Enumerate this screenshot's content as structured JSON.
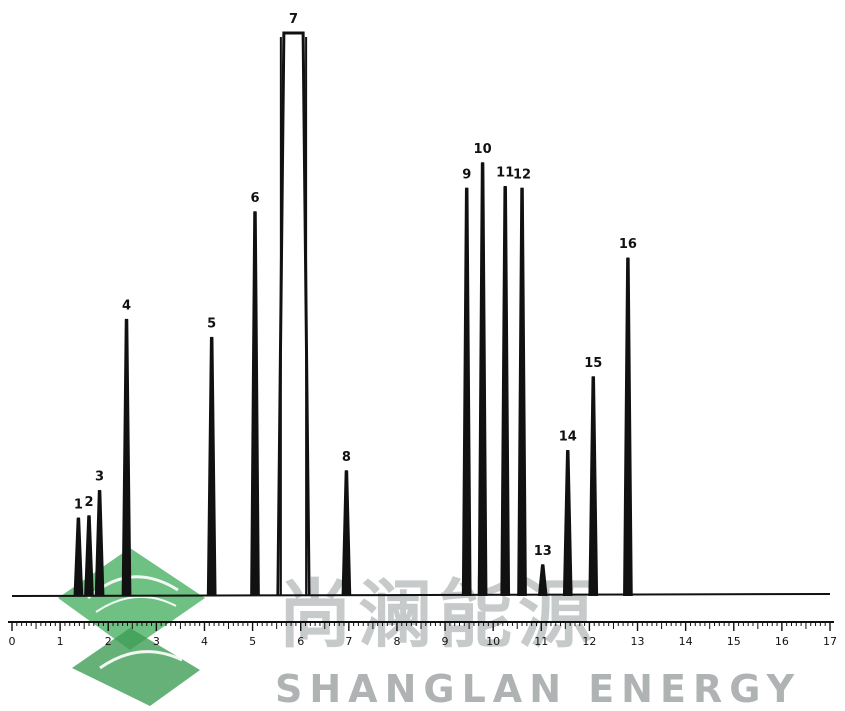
{
  "chart_data": {
    "type": "line",
    "title": "",
    "xlabel": "",
    "ylabel": "",
    "xlim": [
      0,
      17
    ],
    "ylim": [
      0,
      100
    ],
    "x_ticks": [
      "0",
      "1",
      "2",
      "3",
      "4",
      "5",
      "6",
      "7",
      "8",
      "9",
      "10",
      "11",
      "12",
      "13",
      "14",
      "15",
      "16",
      "17"
    ],
    "grid": false,
    "peaks": [
      {
        "label": "1",
        "x": 1.38,
        "height": 13.8,
        "width": 0.05
      },
      {
        "label": "2",
        "x": 1.6,
        "height": 14.2,
        "width": 0.05
      },
      {
        "label": "3",
        "x": 1.82,
        "height": 18.7,
        "width": 0.04
      },
      {
        "label": "4",
        "x": 2.38,
        "height": 49.1,
        "width": 0.07
      },
      {
        "label": "5",
        "x": 4.15,
        "height": 45.9,
        "width": 0.07
      },
      {
        "label": "6",
        "x": 5.05,
        "height": 68.2,
        "width": 0.08
      },
      {
        "label": "7",
        "x": 5.85,
        "height": 100,
        "width": 0.4,
        "saturated": true
      },
      {
        "label": "8",
        "x": 6.95,
        "height": 22.2,
        "width": 0.07
      },
      {
        "label": "9",
        "x": 9.45,
        "height": 72.4,
        "width": 0.06
      },
      {
        "label": "10",
        "x": 9.78,
        "height": 76.9,
        "width": 0.06
      },
      {
        "label": "11",
        "x": 10.25,
        "height": 72.7,
        "width": 0.06
      },
      {
        "label": "12",
        "x": 10.6,
        "height": 72.4,
        "width": 0.06
      },
      {
        "label": "13",
        "x": 11.03,
        "height": 5.5,
        "width": 0.04
      },
      {
        "label": "14",
        "x": 11.55,
        "height": 25.8,
        "width": 0.05
      },
      {
        "label": "15",
        "x": 12.08,
        "height": 38.9,
        "width": 0.05
      },
      {
        "label": "16",
        "x": 12.8,
        "height": 60.0,
        "width": 0.06
      }
    ]
  },
  "watermark": {
    "chinese": "尚澜能源",
    "english": "SHANGLAN ENERGY",
    "color": "#1e9a3c"
  }
}
